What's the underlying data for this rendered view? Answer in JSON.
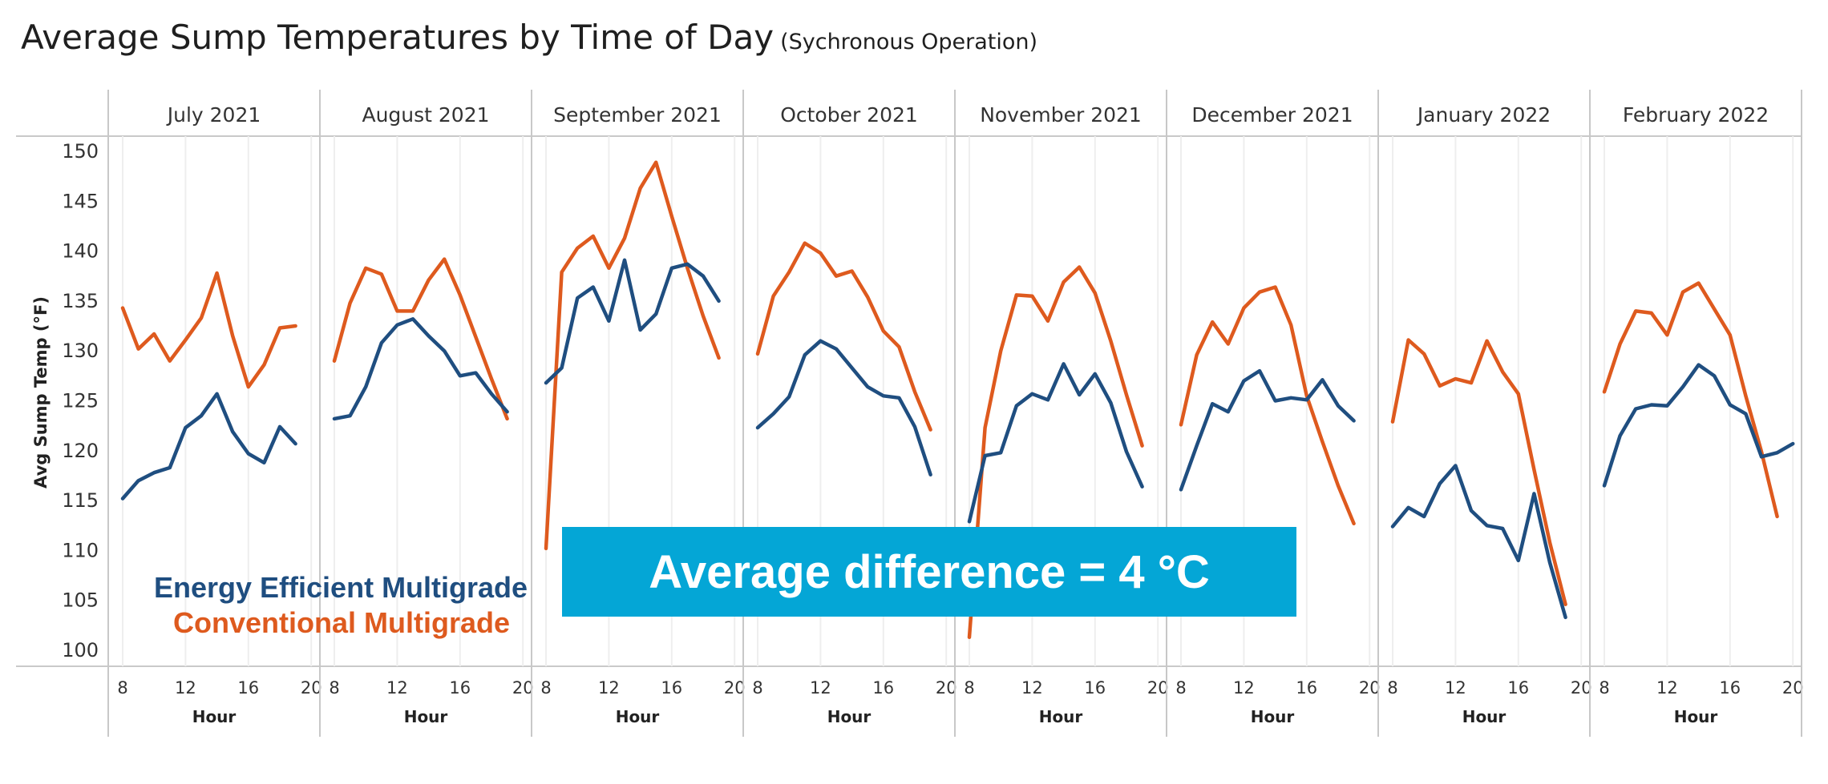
{
  "title": {
    "main": "Average Sump Temperatures by Time of Day",
    "subtitle": "(Sychronous Operation)"
  },
  "legend": {
    "series_a": "Energy Efficient Multigrade",
    "series_b": "Conventional Multigrade"
  },
  "callout": "Average difference = 4 °C",
  "colors": {
    "energy_efficient": "#1f4e80",
    "conventional": "#de5a1e",
    "callout_bg": "#04a6d6",
    "grid": "#d9d9d9"
  },
  "chart_data": {
    "type": "line",
    "ylabel": "Avg Sump Temp (°F)",
    "xlabel": "Hour",
    "ylim": [
      98.5,
      150.5
    ],
    "yticks": [
      100,
      105,
      110,
      115,
      120,
      125,
      130,
      135,
      140,
      145,
      150
    ],
    "xlim": [
      7.5,
      20.3
    ],
    "xticks": [
      8,
      12,
      16,
      20
    ],
    "grid": true,
    "series_names": [
      "Energy Efficient Multigrade",
      "Conventional Multigrade"
    ],
    "panels": [
      {
        "label": "July 2021",
        "x_ee": [
          8,
          9,
          10,
          11,
          12,
          13,
          14,
          15,
          16,
          17,
          18,
          19
        ],
        "ee": [
          115.2,
          117.0,
          117.8,
          118.3,
          122.3,
          123.5,
          125.7,
          121.9,
          119.7,
          118.8,
          122.4,
          120.7
        ],
        "x_cv": [
          8,
          9,
          10,
          11,
          12,
          13,
          14,
          15,
          16,
          17,
          18,
          19
        ],
        "cv": [
          134.3,
          130.2,
          131.7,
          129.0,
          131.1,
          133.3,
          137.8,
          131.5,
          126.4,
          128.6,
          132.3,
          132.5
        ]
      },
      {
        "label": "August 2021",
        "x_ee": [
          8,
          9,
          10,
          11,
          12,
          13,
          14,
          15,
          16,
          17,
          18,
          19
        ],
        "ee": [
          123.2,
          123.5,
          126.4,
          130.8,
          132.6,
          133.2,
          131.5,
          130.0,
          127.5,
          127.8,
          125.7,
          123.9
        ],
        "x_cv": [
          8,
          9,
          10,
          11,
          12,
          13,
          14,
          15,
          16,
          17,
          18,
          19
        ],
        "cv": [
          129.0,
          134.8,
          138.3,
          137.7,
          134.0,
          134.0,
          137.1,
          139.2,
          135.6,
          131.4,
          127.2,
          123.2
        ]
      },
      {
        "label": "September 2021",
        "x_ee": [
          8,
          9,
          10,
          11,
          12,
          13,
          14,
          15,
          16,
          17,
          18,
          19
        ],
        "ee": [
          126.8,
          128.3,
          135.3,
          136.4,
          133.0,
          139.1,
          132.1,
          133.7,
          138.3,
          138.7,
          137.5,
          135.0
        ],
        "x_cv": [
          8,
          9,
          10,
          11,
          12,
          13,
          14,
          15,
          16,
          17,
          18,
          19
        ],
        "cv": [
          110.2,
          137.9,
          140.3,
          141.5,
          138.3,
          141.3,
          146.3,
          148.9,
          143.5,
          138.3,
          133.5,
          129.3
        ]
      },
      {
        "label": "October 2021",
        "x_ee": [
          8,
          9,
          10,
          11,
          12,
          13,
          14,
          15,
          16,
          17,
          18,
          19
        ],
        "ee": [
          122.3,
          123.7,
          125.4,
          129.6,
          131.0,
          130.2,
          128.3,
          126.4,
          125.5,
          125.3,
          122.4,
          117.6
        ],
        "x_cv": [
          8,
          9,
          10,
          11,
          12,
          13,
          14,
          15,
          16,
          17,
          18,
          19
        ],
        "cv": [
          129.7,
          135.5,
          137.9,
          140.8,
          139.8,
          137.5,
          138.0,
          135.4,
          132.0,
          130.4,
          125.9,
          122.1
        ]
      },
      {
        "label": "November 2021",
        "x_ee": [
          8,
          9,
          10,
          11,
          12,
          13,
          14,
          15,
          16,
          17,
          18,
          19
        ],
        "ee": [
          112.9,
          119.5,
          119.8,
          124.5,
          125.7,
          125.1,
          128.7,
          125.6,
          127.7,
          124.8,
          119.9,
          116.4
        ],
        "x_cv": [
          8,
          9,
          10,
          11,
          12,
          13,
          14,
          15,
          16,
          17,
          18,
          19
        ],
        "cv": [
          101.3,
          122.3,
          130.0,
          135.6,
          135.5,
          133.0,
          136.9,
          138.4,
          135.8,
          131.0,
          125.6,
          120.5
        ]
      },
      {
        "label": "December 2021",
        "x_ee": [
          8,
          9,
          10,
          11,
          12,
          13,
          14,
          15,
          16,
          17,
          18,
          19
        ],
        "ee": [
          116.1,
          120.5,
          124.7,
          123.9,
          127.0,
          128.0,
          125.0,
          125.3,
          125.1,
          127.1,
          124.5,
          123.0
        ],
        "x_cv": [
          8,
          9,
          10,
          11,
          12,
          13,
          14,
          15,
          16,
          17,
          18,
          19
        ],
        "cv": [
          122.6,
          129.6,
          132.9,
          130.7,
          134.3,
          135.9,
          136.4,
          132.6,
          125.5,
          120.9,
          116.5,
          112.7
        ]
      },
      {
        "label": "January 2022",
        "x_ee": [
          8,
          9,
          10,
          11,
          12,
          13,
          14,
          15,
          16,
          17,
          18,
          19
        ],
        "ee": [
          112.4,
          114.3,
          113.4,
          116.7,
          118.5,
          114.0,
          112.5,
          112.2,
          109.0,
          115.7,
          108.8,
          103.3
        ],
        "x_cv": [
          8,
          9,
          10,
          11,
          12,
          13,
          14,
          15,
          16,
          17,
          18,
          19
        ],
        "cv": [
          122.9,
          131.1,
          129.7,
          126.5,
          127.2,
          126.8,
          131.0,
          127.9,
          125.7,
          118.1,
          110.8,
          104.6
        ]
      },
      {
        "label": "February 2022",
        "x_ee": [
          8,
          9,
          10,
          11,
          12,
          13,
          14,
          15,
          16,
          17,
          18,
          19,
          20
        ],
        "ee": [
          116.5,
          121.5,
          124.2,
          124.6,
          124.5,
          126.4,
          128.6,
          127.5,
          124.6,
          123.7,
          119.4,
          119.8,
          120.7
        ],
        "x_cv": [
          8,
          9,
          10,
          11,
          12,
          13,
          14,
          15,
          16,
          17,
          18,
          19
        ],
        "cv": [
          125.9,
          130.7,
          134.0,
          133.8,
          131.6,
          135.9,
          136.8,
          134.2,
          131.6,
          125.5,
          119.9,
          113.4
        ]
      }
    ]
  }
}
